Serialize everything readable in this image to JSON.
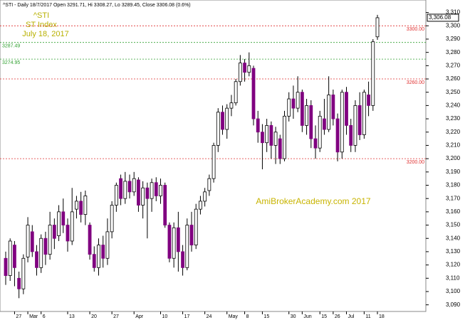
{
  "chart_data": {
    "type": "candlestick",
    "header": "^STI - Daily 18/7/2017 Open 3291.71, Hi 3308.27, Lo 3289.45, Close 3306.08 (0.6%)",
    "title": "^STI",
    "subtitle": "ST Index",
    "date_label": "July 18, 2017",
    "watermark": "AmiBrokerAcademy.com  2017",
    "up_color": "#ffffff",
    "down_color": "#800080",
    "ylim": [
      3085,
      3313
    ],
    "yticks": [
      {
        "value": 3090,
        "label": "3,090"
      },
      {
        "value": 3100,
        "label": "3,100"
      },
      {
        "value": 3110,
        "label": "3,110"
      },
      {
        "value": 3120,
        "label": "3,120"
      },
      {
        "value": 3130,
        "label": "3,130"
      },
      {
        "value": 3140,
        "label": "3,140"
      },
      {
        "value": 3150,
        "label": "3,150"
      },
      {
        "value": 3160,
        "label": "3,160"
      },
      {
        "value": 3170,
        "label": "3,170"
      },
      {
        "value": 3180,
        "label": "3,180"
      },
      {
        "value": 3190,
        "label": "3,190"
      },
      {
        "value": 3200,
        "label": "3,200"
      },
      {
        "value": 3210,
        "label": "3,210"
      },
      {
        "value": 3220,
        "label": "3,220"
      },
      {
        "value": 3230,
        "label": "3,230"
      },
      {
        "value": 3240,
        "label": "3,240"
      },
      {
        "value": 3250,
        "label": "3,250"
      },
      {
        "value": 3260,
        "label": "3,260"
      },
      {
        "value": 3270,
        "label": "3,270"
      },
      {
        "value": 3280,
        "label": "3,280"
      },
      {
        "value": 3290,
        "label": "3,290"
      },
      {
        "value": 3300,
        "label": "3,300"
      },
      {
        "value": 3310,
        "label": "3,310"
      }
    ],
    "levels": [
      {
        "value": 3300,
        "label": "3300.00",
        "color": "#e03030",
        "side": "right"
      },
      {
        "value": 3287.49,
        "label": "3287.49",
        "color": "#30a030",
        "side": "left"
      },
      {
        "value": 3274.95,
        "label": "3274.95",
        "color": "#30a030",
        "side": "left"
      },
      {
        "value": 3260,
        "label": "3260.00",
        "color": "#e03030",
        "side": "right"
      },
      {
        "value": 3200,
        "label": "3200.00",
        "color": "#e03030",
        "side": "right"
      }
    ],
    "last_price_label": {
      "value": 3306.08,
      "label": "3,306.08"
    },
    "categories": [
      null,
      null,
      "27",
      null,
      null,
      "Mar",
      null,
      null,
      "6",
      null,
      null,
      null,
      null,
      null,
      "13",
      null,
      null,
      null,
      null,
      "20",
      null,
      null,
      null,
      null,
      "27",
      null,
      null,
      null,
      null,
      "Apr",
      null,
      null,
      null,
      null,
      null,
      "10",
      null,
      null,
      null,
      null,
      "17",
      null,
      null,
      null,
      null,
      "24",
      null,
      null,
      null,
      null,
      "May",
      null,
      null,
      null,
      "8",
      null,
      null,
      null,
      "15",
      null,
      null,
      null,
      null,
      null,
      "30",
      null,
      null,
      "Jun",
      null,
      null,
      null,
      "15",
      null,
      null,
      "26",
      null,
      null,
      "Jul",
      null,
      null,
      null,
      "11",
      null,
      null,
      "18"
    ],
    "open": [
      3125,
      3112,
      3135,
      3110,
      3102,
      3126,
      3145,
      3130,
      3118,
      3140,
      3128,
      3150,
      3142,
      3160,
      3150,
      3138,
      3162,
      3168,
      3158,
      3150,
      3128,
      3118,
      3135,
      3125,
      3145,
      3165,
      3185,
      3170,
      3183,
      3175,
      3184,
      3165,
      3178,
      3170,
      3182,
      3172,
      3180,
      3150,
      3125,
      3148,
      3130,
      3118,
      3150,
      3135,
      3162,
      3168,
      3176,
      3185,
      3210,
      3235,
      3222,
      3238,
      3242,
      3258,
      3272,
      3265,
      3268,
      3230,
      3220,
      3212,
      3225,
      3210,
      3215,
      3200,
      3232,
      3245,
      3238,
      3250,
      3225,
      3240,
      3215,
      3208,
      3230,
      3222,
      3248,
      3230,
      3205,
      3250,
      3225,
      3210,
      3240,
      3218,
      3248,
      3240,
      3291.71
    ],
    "high": [
      3130,
      3140,
      3138,
      3115,
      3128,
      3156,
      3150,
      3135,
      3143,
      3145,
      3160,
      3155,
      3165,
      3170,
      3155,
      3178,
      3172,
      3175,
      3176,
      3152,
      3134,
      3140,
      3142,
      3155,
      3168,
      3182,
      3188,
      3190,
      3188,
      3190,
      3186,
      3183,
      3182,
      3185,
      3186,
      3185,
      3182,
      3152,
      3152,
      3160,
      3135,
      3155,
      3160,
      3166,
      3172,
      3178,
      3188,
      3212,
      3238,
      3240,
      3241,
      3248,
      3260,
      3278,
      3275,
      3280,
      3270,
      3236,
      3226,
      3230,
      3228,
      3224,
      3218,
      3236,
      3250,
      3255,
      3262,
      3252,
      3245,
      3244,
      3225,
      3236,
      3245,
      3262,
      3252,
      3234,
      3252,
      3254,
      3230,
      3244,
      3250,
      3252,
      3258,
      3290,
      3308.27
    ],
    "low": [
      3105,
      3108,
      3104,
      3095,
      3098,
      3122,
      3126,
      3112,
      3114,
      3120,
      3124,
      3132,
      3138,
      3144,
      3130,
      3135,
      3155,
      3152,
      3150,
      3124,
      3115,
      3112,
      3118,
      3120,
      3140,
      3160,
      3165,
      3166,
      3170,
      3172,
      3160,
      3155,
      3140,
      3160,
      3168,
      3166,
      3148,
      3122,
      3118,
      3115,
      3112,
      3116,
      3130,
      3132,
      3158,
      3164,
      3172,
      3182,
      3205,
      3218,
      3215,
      3232,
      3240,
      3255,
      3258,
      3262,
      3225,
      3212,
      3192,
      3205,
      3200,
      3196,
      3196,
      3198,
      3228,
      3230,
      3235,
      3220,
      3218,
      3208,
      3200,
      3205,
      3218,
      3220,
      3225,
      3198,
      3200,
      3218,
      3205,
      3205,
      3214,
      3215,
      3232,
      3236,
      3289.45
    ],
    "close": [
      3112,
      3138,
      3118,
      3102,
      3125,
      3150,
      3130,
      3118,
      3140,
      3128,
      3150,
      3140,
      3160,
      3150,
      3138,
      3160,
      3168,
      3158,
      3172,
      3128,
      3118,
      3135,
      3125,
      3145,
      3165,
      3180,
      3170,
      3183,
      3175,
      3185,
      3165,
      3178,
      3170,
      3182,
      3172,
      3180,
      3150,
      3125,
      3148,
      3130,
      3118,
      3150,
      3135,
      3162,
      3168,
      3175,
      3185,
      3210,
      3235,
      3222,
      3238,
      3242,
      3258,
      3272,
      3265,
      3270,
      3230,
      3220,
      3212,
      3225,
      3210,
      3220,
      3200,
      3232,
      3245,
      3238,
      3250,
      3225,
      3240,
      3215,
      3208,
      3232,
      3222,
      3248,
      3230,
      3205,
      3250,
      3225,
      3210,
      3240,
      3218,
      3250,
      3240,
      3288,
      3306.08
    ]
  }
}
